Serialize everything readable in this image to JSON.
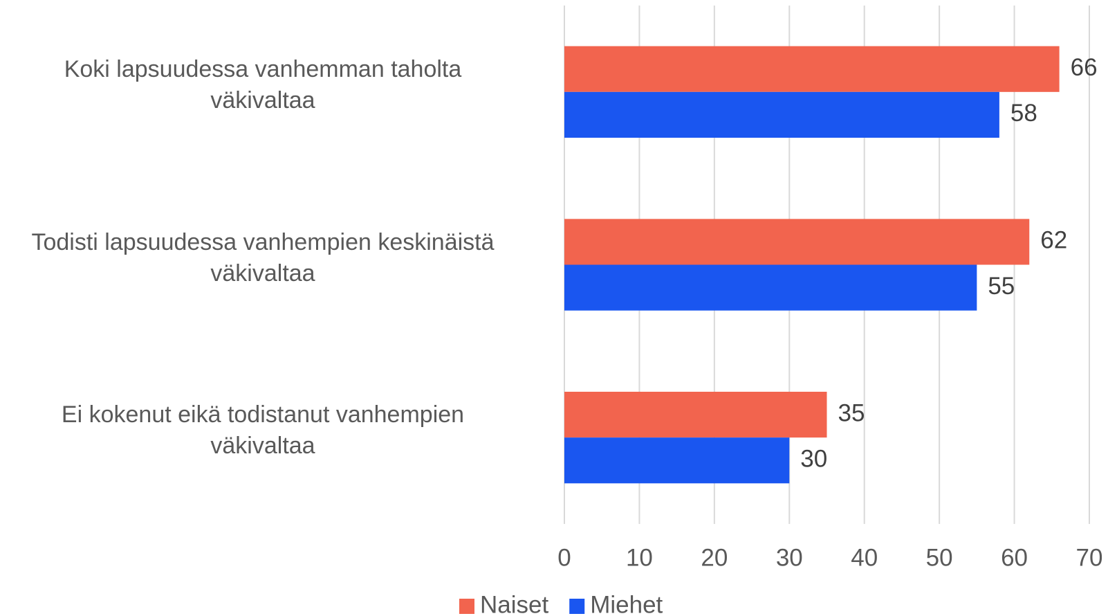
{
  "chart_data": {
    "type": "hbar",
    "categories": [
      "Koki lapsuudessa vanhemman taholta\nväkivaltaa",
      "Todisti lapsuudessa vanhempien keskinäistä\nväkivaltaa",
      "Ei kokenut eikä todistanut vanhempien\nväkivaltaa"
    ],
    "series": [
      {
        "name": "Naiset",
        "color": "#f2644e",
        "values": [
          66,
          62,
          35
        ]
      },
      {
        "name": "Miehet",
        "color": "#1a56f0",
        "values": [
          58,
          55,
          30
        ]
      }
    ],
    "xlim": [
      0,
      70
    ],
    "xticks": [
      0,
      10,
      20,
      30,
      40,
      50,
      60,
      70
    ],
    "grid": true,
    "legend": "bottom"
  }
}
